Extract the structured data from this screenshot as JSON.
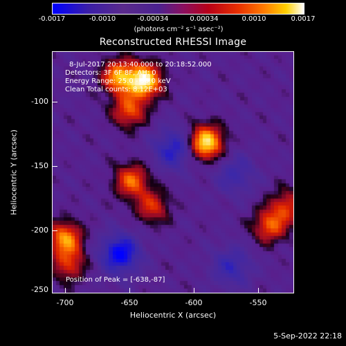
{
  "colorbar": {
    "ticks": [
      "-0.0017",
      "-0.0010",
      "-0.00034",
      "0.00034",
      "0.0010",
      "0.0017"
    ],
    "units": "(photons cm⁻² s⁻¹ asec⁻²)",
    "colors": [
      "#0000ff",
      "#3a1ea8",
      "#5a2a8c",
      "#b80018",
      "#ff7a00",
      "#ffffff"
    ]
  },
  "title": "Reconstructed RHESSI Image",
  "info": {
    "line1": "8-Jul-2017 20:13:40.000 to 20:18:52.000",
    "line2": "Detectors: 3F 6F 8F, AH: 0",
    "line3": "Energy Range: 25.0 - 50.0 keV",
    "line4": "Clean     Total counts: 8.12E+03",
    "peak": "Position of Peak = [-638,-87]"
  },
  "footer": {
    "date": "5-Sep-2022 22:18"
  },
  "chart_data": {
    "type": "heatmap",
    "title": "Reconstructed RHESSI Image",
    "xlabel": "Heliocentric X (arcsec)",
    "ylabel": "Heliocentric Y (arcsec)",
    "xlim": [
      -710,
      -522
    ],
    "ylim": [
      -252,
      -64
    ],
    "x_ticks": [
      -700,
      -650,
      -600,
      -550
    ],
    "x_tick_labels": [
      "-700",
      "-650",
      "-600",
      "-550"
    ],
    "y_ticks": [
      -100,
      -150,
      -200,
      -250
    ],
    "y_tick_labels": [
      "-100",
      "-150",
      "-200",
      "-250"
    ],
    "colorbar_range": [
      -0.0017,
      0.0017
    ],
    "sources": [
      {
        "x": -638,
        "y": -87,
        "strength": 1.0
      },
      {
        "x": -658,
        "y": -84,
        "strength": 0.75
      },
      {
        "x": -650,
        "y": -110,
        "strength": 0.55
      },
      {
        "x": -648,
        "y": -165,
        "strength": 0.6
      },
      {
        "x": -632,
        "y": -185,
        "strength": 0.45
      },
      {
        "x": -590,
        "y": -135,
        "strength": 0.95
      },
      {
        "x": -700,
        "y": -210,
        "strength": 0.7
      },
      {
        "x": -697,
        "y": -230,
        "strength": 0.45
      },
      {
        "x": -540,
        "y": -200,
        "strength": 0.55
      },
      {
        "x": -527,
        "y": -185,
        "strength": 0.45
      }
    ],
    "negative_regions": [
      {
        "x": -657,
        "y": -222,
        "strength": 0.6
      },
      {
        "x": -615,
        "y": -140,
        "strength": 0.45
      },
      {
        "x": -570,
        "y": -232,
        "strength": 0.35
      },
      {
        "x": -567,
        "y": -160,
        "strength": 0.3
      }
    ],
    "grid": false
  },
  "axes": {
    "xlabel": "Heliocentric X (arcsec)",
    "ylabel": "Heliocentric Y (arcsec)"
  }
}
